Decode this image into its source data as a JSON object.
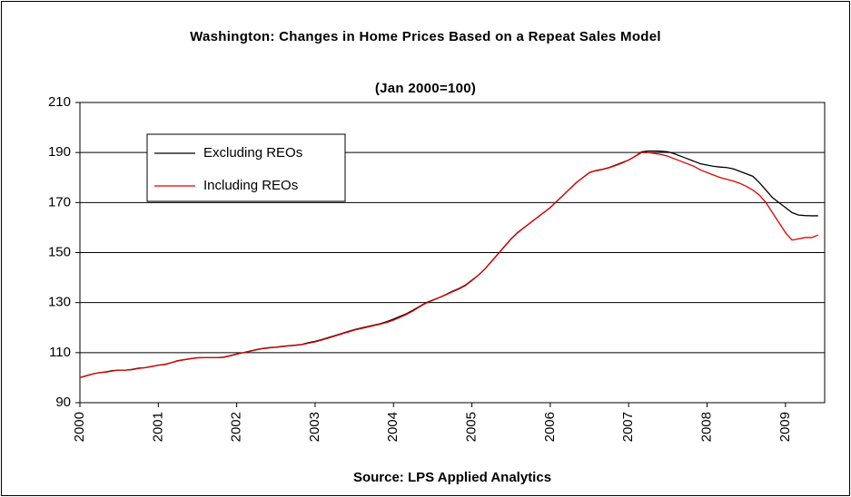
{
  "chart_data": {
    "type": "line",
    "title": "Washington: Changes in Home Prices Based on a Repeat Sales Model",
    "subtitle": "(Jan 2000=100)",
    "x_label": "Source: LPS Applied Analytics",
    "categories": [
      "2000",
      null,
      null,
      null,
      null,
      null,
      null,
      null,
      null,
      null,
      null,
      null,
      "2001",
      null,
      null,
      null,
      null,
      null,
      null,
      null,
      null,
      null,
      null,
      null,
      "2002",
      null,
      null,
      null,
      null,
      null,
      null,
      null,
      null,
      null,
      null,
      null,
      "2003",
      null,
      null,
      null,
      null,
      null,
      null,
      null,
      null,
      null,
      null,
      null,
      "2004",
      null,
      null,
      null,
      null,
      null,
      null,
      null,
      null,
      null,
      null,
      null,
      "2005",
      null,
      null,
      null,
      null,
      null,
      null,
      null,
      null,
      null,
      null,
      null,
      "2006",
      null,
      null,
      null,
      null,
      null,
      null,
      null,
      null,
      null,
      null,
      null,
      "2007",
      null,
      null,
      null,
      null,
      null,
      null,
      null,
      null,
      null,
      null,
      null,
      "2008",
      null,
      null,
      null,
      null,
      null,
      null,
      null,
      null,
      null,
      null,
      null,
      "2009",
      null,
      null,
      null,
      null,
      null
    ],
    "series": [
      {
        "name": "Excluding REOs",
        "color": "#000000",
        "values": [
          100,
          100.8,
          101.5,
          102,
          102.3,
          102.8,
          103,
          103,
          103.3,
          103.8,
          104,
          104.5,
          105,
          105.3,
          106,
          106.8,
          107.2,
          107.6,
          108,
          108,
          108,
          108,
          108.2,
          108.8,
          109.5,
          110,
          110.6,
          111.2,
          111.7,
          112,
          112.2,
          112.5,
          112.8,
          113,
          113.3,
          114,
          114.5,
          115.2,
          116,
          116.8,
          117.6,
          118.4,
          119.2,
          119.8,
          120.4,
          121,
          121.6,
          122.4,
          123.4,
          124.5,
          125.6,
          127,
          128.5,
          130,
          131,
          132,
          133.2,
          134.5,
          135.6,
          137,
          139,
          141,
          143.5,
          146.5,
          149.5,
          152.5,
          155.5,
          158,
          160,
          162,
          164,
          166,
          168,
          170.5,
          173,
          175.5,
          178,
          180,
          182,
          182.8,
          183.3,
          184,
          185,
          186,
          187,
          188.5,
          190.3,
          190.6,
          190.6,
          190.5,
          190.3,
          189.5,
          188.5,
          187.5,
          186.5,
          185.5,
          185,
          184.5,
          184.2,
          184,
          183.5,
          182.5,
          181.5,
          180.5,
          178,
          175,
          172,
          170,
          168,
          166,
          165,
          164.8,
          164.7,
          164.7
        ]
      },
      {
        "name": "Including REOs",
        "color": "#e00000",
        "values": [
          100,
          100.7,
          101.5,
          102,
          102.2,
          102.7,
          103,
          103,
          103.2,
          103.7,
          104,
          104.4,
          105,
          105.2,
          106,
          106.7,
          107.2,
          107.6,
          107.9,
          108,
          108,
          108,
          108.1,
          108.7,
          109.4,
          110,
          110.5,
          111.1,
          111.6,
          111.9,
          112.1,
          112.4,
          112.7,
          112.9,
          113.2,
          113.8,
          114.3,
          115,
          115.8,
          116.6,
          117.4,
          118.2,
          119,
          119.6,
          120.2,
          120.8,
          121.4,
          122.1,
          123,
          124.1,
          125.3,
          126.7,
          128.3,
          129.8,
          130.9,
          132,
          133.1,
          134.3,
          135.4,
          136.8,
          138.8,
          141,
          143.5,
          146.4,
          149.4,
          152.4,
          155.4,
          157.9,
          160,
          162,
          164,
          166,
          168,
          170.5,
          173,
          175.5,
          178,
          180,
          182,
          182.7,
          183.2,
          183.9,
          184.8,
          185.8,
          187,
          188.5,
          190,
          190,
          189.6,
          189.2,
          188.5,
          187.5,
          186.5,
          185.5,
          184.5,
          183,
          182,
          181,
          180,
          179.3,
          178.6,
          177.7,
          176.5,
          175,
          173,
          170,
          166,
          162,
          158,
          155,
          155.5,
          156,
          156,
          157
        ]
      }
    ],
    "ylim": [
      90,
      210
    ],
    "yticks": [
      90,
      110,
      130,
      150,
      170,
      190,
      210
    ],
    "grid": true,
    "legend": "upper left"
  }
}
